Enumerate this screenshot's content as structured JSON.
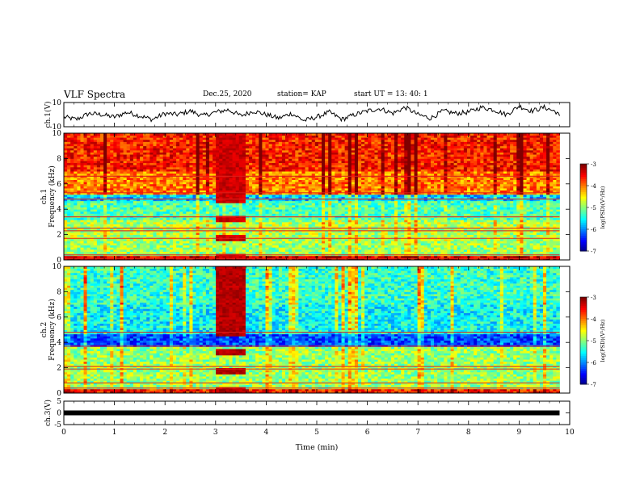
{
  "header": {
    "title": "VLF Spectra",
    "date": "Dec.25, 2020",
    "station": "station= KAP",
    "start": "start  UT =   13: 40: 1"
  },
  "chart_data": [
    {
      "type": "line",
      "panel": "ch1-waveform",
      "ylabel": "ch.1(V)",
      "ylim": [
        -10,
        10
      ],
      "yticks": [
        "10",
        "-10"
      ],
      "xlim": [
        0,
        10
      ],
      "x": [
        0,
        0.25,
        0.5,
        0.75,
        1.0,
        1.25,
        1.5,
        1.75,
        2.0,
        2.25,
        2.5,
        2.75,
        3.0,
        3.25,
        3.5,
        3.75,
        4.0,
        4.25,
        4.5,
        4.75,
        5.0,
        5.25,
        5.5,
        5.75,
        6.0,
        6.25,
        6.5,
        6.75,
        7.0,
        7.25,
        7.5,
        7.75,
        8.0,
        8.25,
        8.5,
        8.75,
        9.0,
        9.25,
        9.5,
        9.75,
        9.8
      ],
      "values": [
        -2,
        -4,
        1,
        0,
        -2,
        2,
        -1,
        -4,
        1,
        0,
        3,
        -1,
        2,
        4,
        -1,
        3,
        0,
        -3,
        1,
        -5,
        -2,
        2,
        -4,
        0,
        3,
        5,
        1,
        6,
        0,
        -3,
        3,
        1,
        2,
        6,
        4,
        0,
        7,
        3,
        6,
        2,
        -2
      ],
      "color": "#000000"
    },
    {
      "type": "heatmap",
      "panel": "ch1-spectrogram",
      "ylabel": "ch.1\nFrequency (kHz)",
      "ylim": [
        0,
        10
      ],
      "yticks": [
        "0",
        "2",
        "4",
        "6",
        "8",
        "10"
      ],
      "xlim": [
        0,
        9.8
      ],
      "colorbar": {
        "label": "log(PSD)(V²/Hz)",
        "range": [
          -7,
          -3
        ],
        "ticks": [
          "-3",
          "-4",
          "-5",
          "-6",
          "-7"
        ]
      },
      "band_levels": [
        {
          "from": 0,
          "to": 0.4,
          "level": -3.4
        },
        {
          "from": 0.4,
          "to": 1.5,
          "level": -4.9
        },
        {
          "from": 1.5,
          "to": 3.2,
          "level": -4.8
        },
        {
          "from": 3.2,
          "to": 4.6,
          "level": -5.2
        },
        {
          "from": 4.6,
          "to": 5.2,
          "level": -5.7
        },
        {
          "from": 5.2,
          "to": 7.0,
          "level": -4.0
        },
        {
          "from": 7.0,
          "to": 10,
          "level": -3.6
        }
      ],
      "lines_khz": [
        6.6,
        5.3,
        4.8,
        3.4,
        2.5,
        2.3,
        1.7,
        0.4,
        0.1
      ],
      "burst": {
        "t_from": 3.0,
        "t_to": 3.6,
        "level": -3.3
      }
    },
    {
      "type": "heatmap",
      "panel": "ch2-spectrogram",
      "ylabel": "ch.2\nFrequency (kHz)",
      "ylim": [
        0,
        10
      ],
      "yticks": [
        "0",
        "2",
        "4",
        "6",
        "8",
        "10"
      ],
      "xlim": [
        0,
        9.8
      ],
      "colorbar": {
        "label": "log(PSD)(V²/Hz)",
        "range": [
          -7,
          -3
        ],
        "ticks": [
          "-3",
          "-4",
          "-5",
          "-6",
          "-7"
        ]
      },
      "band_levels": [
        {
          "from": 0,
          "to": 0.4,
          "level": -3.6
        },
        {
          "from": 0.4,
          "to": 3.6,
          "level": -4.9
        },
        {
          "from": 3.6,
          "to": 4.6,
          "level": -6.2
        },
        {
          "from": 4.6,
          "to": 7.0,
          "level": -5.5
        },
        {
          "from": 7.0,
          "to": 10,
          "level": -5.3
        }
      ],
      "lines_khz": [
        4.8,
        3.7,
        2.1,
        1.9,
        0.8,
        0.4
      ],
      "burst": {
        "t_from": 3.0,
        "t_to": 3.6,
        "level": -3.2
      }
    },
    {
      "type": "line",
      "panel": "ch3-waveform",
      "ylabel": "ch.3(V)",
      "ylim": [
        -5,
        5
      ],
      "yticks": [
        "5",
        "0",
        "-5"
      ],
      "xlim": [
        0,
        10
      ],
      "x": [
        0,
        9.8
      ],
      "values": [
        0,
        0
      ],
      "color": "#000000"
    }
  ],
  "xaxis": {
    "label": "Time (min)",
    "ticks": [
      "0",
      "1",
      "2",
      "3",
      "4",
      "5",
      "6",
      "7",
      "8",
      "9",
      "10"
    ]
  }
}
